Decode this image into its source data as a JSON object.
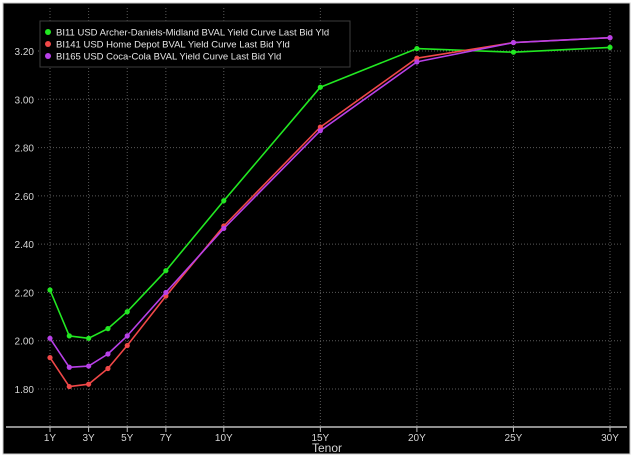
{
  "chart_data": {
    "type": "line",
    "xlabel": "Tenor",
    "ylabel": "",
    "categories": [
      "1Y",
      "2Y",
      "3Y",
      "4Y",
      "5Y",
      "7Y",
      "10Y",
      "15Y",
      "20Y",
      "25Y",
      "30Y"
    ],
    "x_values": [
      1,
      2,
      3,
      4,
      5,
      7,
      10,
      15,
      20,
      25,
      30
    ],
    "x_tick_labels": [
      "1Y",
      "3Y",
      "5Y",
      "7Y",
      "10Y",
      "15Y",
      "20Y",
      "25Y",
      "30Y"
    ],
    "x_tick_values": [
      1,
      3,
      5,
      7,
      10,
      15,
      20,
      25,
      30
    ],
    "ylim": [
      1.7,
      3.3
    ],
    "y_ticks": [
      1.8,
      2.0,
      2.2,
      2.4,
      2.6,
      2.8,
      3.0,
      3.2
    ],
    "y_tick_labels": [
      "1.80",
      "2.00",
      "2.20",
      "2.40",
      "2.60",
      "2.80",
      "3.00",
      "3.20"
    ],
    "grid": true,
    "legend_position": "top-left",
    "series": [
      {
        "name": "BI11 USD Archer-Daniels-Midland BVAL Yield Curve Last Bid Yld",
        "color": "#22e822",
        "values": [
          2.21,
          2.02,
          2.01,
          2.05,
          2.12,
          2.29,
          2.58,
          3.05,
          3.21,
          3.195,
          3.215
        ]
      },
      {
        "name": "BI141 USD Home Depot BVAL Yield Curve Last Bid Yld",
        "color": "#f04848",
        "values": [
          1.93,
          1.81,
          1.82,
          1.885,
          1.98,
          2.185,
          2.475,
          2.885,
          3.17,
          3.235,
          3.255
        ]
      },
      {
        "name": "BI165 USD Coca-Cola BVAL Yield Curve Last Bid Yld",
        "color": "#b840e8",
        "values": [
          2.01,
          1.89,
          1.895,
          1.945,
          2.02,
          2.2,
          2.465,
          2.87,
          3.155,
          3.235,
          3.255
        ]
      }
    ]
  }
}
